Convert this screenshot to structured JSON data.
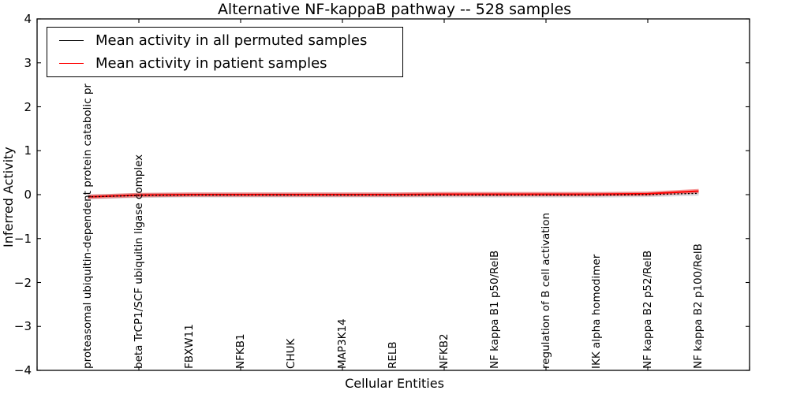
{
  "chart_data": {
    "type": "line",
    "title": "Alternative NF-kappaB pathway -- 528 samples",
    "xlabel": "Cellular Entities",
    "ylabel": "Inferred Activity",
    "ylim": [
      -4,
      4
    ],
    "xlim": [
      0,
      14
    ],
    "ytick_labels": [
      "4",
      "3",
      "2",
      "1",
      "0",
      "−1",
      "−2",
      "−3",
      "−4"
    ],
    "ytick_values": [
      4,
      3,
      2,
      1,
      0,
      -1,
      -2,
      -3,
      -4
    ],
    "xtick_values": [
      0,
      2,
      4,
      6,
      8,
      10,
      12,
      14
    ],
    "grid": false,
    "legend_position": "upper left",
    "categories": [
      "proteasomal ubiquitin-dependent protein catabolic pr",
      "beta TrCP1/SCF ubiquitin ligase complex",
      "FBXW11",
      "NFKB1",
      "CHUK",
      "MAP3K14",
      "RELB",
      "NFKB2",
      "NF kappa B1 p50/RelB",
      "regulation of B cell activation",
      "IKK alpha homodimer",
      "NF kappa B2 p52/RelB",
      "NF kappa B2 p100/RelB"
    ],
    "category_x": [
      1,
      2,
      3,
      4,
      5,
      6,
      7,
      8,
      9,
      10,
      11,
      12,
      13
    ],
    "series": [
      {
        "name": "Mean activity in all permuted samples",
        "color": "#000000",
        "linestyle": "dotted",
        "values": [
          -0.05,
          -0.02,
          -0.01,
          -0.01,
          -0.01,
          -0.01,
          -0.01,
          -0.01,
          -0.01,
          -0.01,
          -0.01,
          0.0,
          0.03
        ],
        "band_halfwidth": 0.055,
        "band_color": "rgba(125,125,140,0.28)"
      },
      {
        "name": "Mean activity in patient samples",
        "color": "#ff0000",
        "linestyle": "solid",
        "values": [
          -0.05,
          -0.01,
          0.0,
          0.0,
          0.0,
          0.0,
          0.0,
          0.01,
          0.01,
          0.01,
          0.01,
          0.02,
          0.08
        ],
        "band_halfwidth": 0.05,
        "band_color": "rgba(235,35,35,0.45)"
      }
    ]
  }
}
